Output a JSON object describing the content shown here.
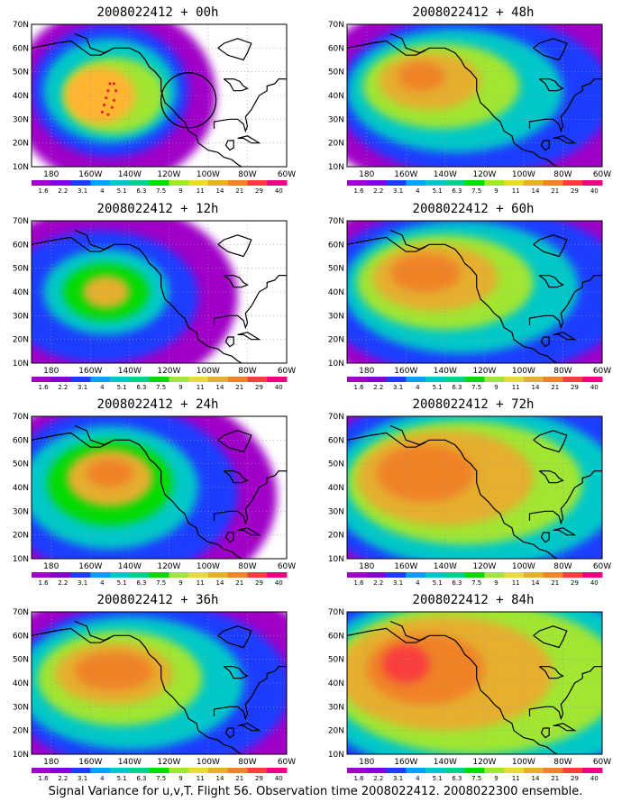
{
  "caption": "Signal Variance for u,v,T. Flight 56. Observation time 2008022412. 2008022300 ensemble.",
  "legend": {
    "levels": [
      "1.6",
      "2.2",
      "3.1",
      "4",
      "5.1",
      "6.3",
      "7.5",
      "9",
      "11",
      "14",
      "21",
      "29",
      "40"
    ],
    "colors": [
      "#a000c8",
      "#8200dc",
      "#1e3cff",
      "#00a0ff",
      "#00c8c8",
      "#00d28c",
      "#00dc00",
      "#a0e632",
      "#e6dc32",
      "#e6af2d",
      "#f08228",
      "#fa3c3c",
      "#f00082"
    ]
  },
  "map": {
    "lat_labels": [
      "70N",
      "60N",
      "50N",
      "40N",
      "30N",
      "20N",
      "10N"
    ],
    "lon_labels": [
      "180",
      "160W",
      "140W",
      "120W",
      "100W",
      "80W",
      "60W"
    ]
  },
  "panels": [
    {
      "base": "2008022412",
      "lead": "00h",
      "blobs": [
        [
          155,
          40,
          18,
          12,
          "#ffb432"
        ],
        [
          148,
          40,
          26,
          16,
          "#a0e632"
        ],
        [
          150,
          42,
          34,
          22,
          "#00c8c8"
        ],
        [
          150,
          42,
          40,
          28,
          "#1e3cff"
        ],
        [
          148,
          40,
          52,
          38,
          "#a000c8"
        ]
      ],
      "ring": [
        110,
        38,
        14
      ],
      "track": true
    },
    {
      "base": "2008022412",
      "lead": "12h",
      "blobs": [
        [
          152,
          40,
          12,
          7,
          "#e6af2d"
        ],
        [
          152,
          40,
          22,
          12,
          "#00dc00"
        ],
        [
          152,
          40,
          32,
          18,
          "#00c8c8"
        ],
        [
          155,
          38,
          50,
          28,
          "#1e3cff"
        ],
        [
          150,
          38,
          65,
          40,
          "#a000c8"
        ]
      ]
    },
    {
      "base": "2008022412",
      "lead": "24h",
      "blobs": [
        [
          150,
          46,
          12,
          6,
          "#f08228"
        ],
        [
          150,
          44,
          22,
          12,
          "#e6af2d"
        ],
        [
          150,
          42,
          32,
          18,
          "#00dc00"
        ],
        [
          150,
          40,
          45,
          26,
          "#00c8c8"
        ],
        [
          145,
          38,
          60,
          36,
          "#1e3cff"
        ],
        [
          140,
          36,
          75,
          46,
          "#a000c8"
        ]
      ]
    },
    {
      "base": "2008022412",
      "lead": "36h",
      "blobs": [
        [
          148,
          45,
          20,
          8,
          "#f08228"
        ],
        [
          148,
          44,
          30,
          13,
          "#e6af2d"
        ],
        [
          145,
          42,
          42,
          20,
          "#a0e632"
        ],
        [
          140,
          40,
          58,
          28,
          "#00c8c8"
        ],
        [
          130,
          38,
          72,
          36,
          "#1e3cff"
        ],
        [
          125,
          38,
          90,
          46,
          "#a000c8"
        ]
      ]
    },
    {
      "base": "2008022412",
      "lead": "48h",
      "blobs": [
        [
          152,
          48,
          12,
          6,
          "#f08228"
        ],
        [
          148,
          46,
          26,
          12,
          "#e6af2d"
        ],
        [
          142,
          44,
          40,
          18,
          "#a0e632"
        ],
        [
          135,
          42,
          55,
          26,
          "#00c8c8"
        ],
        [
          125,
          40,
          70,
          34,
          "#1e3cff"
        ],
        [
          120,
          40,
          90,
          44,
          "#a000c8"
        ]
      ]
    },
    {
      "base": "2008022412",
      "lead": "60h",
      "blobs": [
        [
          150,
          48,
          18,
          8,
          "#f08228"
        ],
        [
          145,
          46,
          32,
          14,
          "#e6af2d"
        ],
        [
          140,
          44,
          45,
          20,
          "#a0e632"
        ],
        [
          132,
          42,
          60,
          28,
          "#00c8c8"
        ],
        [
          125,
          40,
          80,
          36,
          "#1e3cff"
        ],
        [
          120,
          40,
          95,
          46,
          "#a000c8"
        ]
      ]
    },
    {
      "base": "2008022412",
      "lead": "72h",
      "blobs": [
        [
          150,
          46,
          25,
          12,
          "#f08228"
        ],
        [
          140,
          44,
          45,
          20,
          "#e6af2d"
        ],
        [
          130,
          42,
          60,
          26,
          "#a0e632"
        ],
        [
          125,
          40,
          75,
          34,
          "#00c8c8"
        ],
        [
          120,
          40,
          90,
          42,
          "#1e3cff"
        ],
        [
          120,
          40,
          100,
          50,
          "#a000c8"
        ]
      ]
    },
    {
      "base": "2008022412",
      "lead": "84h",
      "blobs": [
        [
          160,
          48,
          12,
          8,
          "#fa3c3c"
        ],
        [
          150,
          46,
          30,
          15,
          "#f08228"
        ],
        [
          140,
          44,
          55,
          24,
          "#e6af2d"
        ],
        [
          125,
          42,
          75,
          32,
          "#a0e632"
        ],
        [
          120,
          40,
          90,
          40,
          "#00c8c8"
        ],
        [
          120,
          40,
          100,
          50,
          "#1e3cff"
        ],
        [
          120,
          40,
          110,
          60,
          "#a000c8"
        ]
      ]
    }
  ]
}
